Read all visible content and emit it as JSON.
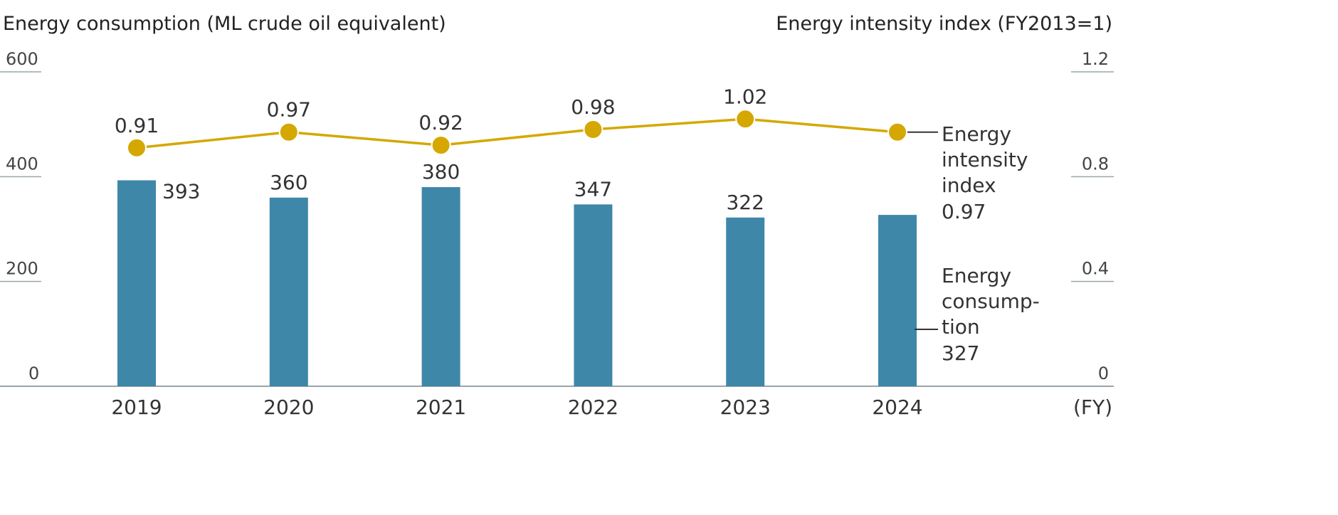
{
  "chart_data": {
    "type": "bar+line",
    "categories": [
      "2019",
      "2020",
      "2021",
      "2022",
      "2023",
      "2024"
    ],
    "xlabel": "(FY)",
    "y_left": {
      "label": "Energy consumption (ML crude oil equivalent)",
      "range": [
        0,
        600
      ],
      "ticks": [
        "0",
        "200",
        "400",
        "600"
      ]
    },
    "y_right": {
      "label": "Energy intensity index (FY2013=1)",
      "range": [
        0,
        1.2
      ],
      "ticks": [
        "0",
        "0.4",
        "0.8",
        "1.2"
      ]
    },
    "series": [
      {
        "name": "Energy consumption",
        "legend_lines": [
          "Energy",
          "consump-",
          "tion"
        ],
        "latest_label": "327",
        "type": "bar",
        "axis": "left",
        "color": "#3e87a9",
        "values": [
          393,
          360,
          380,
          347,
          322,
          327
        ],
        "labels": [
          "393",
          "360",
          "380",
          "347",
          "322",
          ""
        ]
      },
      {
        "name": "Energy intensity index",
        "legend_lines": [
          "Energy",
          "intensity",
          "index"
        ],
        "latest_label": "0.97",
        "type": "line",
        "axis": "right",
        "color": "#d4a800",
        "values": [
          0.91,
          0.97,
          0.92,
          0.98,
          1.02,
          0.97
        ],
        "labels": [
          "0.91",
          "0.97",
          "0.92",
          "0.98",
          "1.02",
          ""
        ]
      }
    ],
    "grid": false,
    "legend": "right, inline labels"
  }
}
